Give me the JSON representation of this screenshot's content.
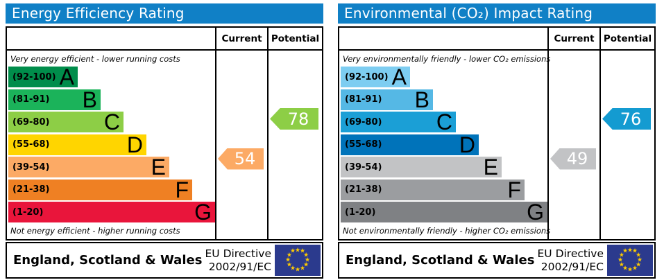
{
  "chart_data": [
    {
      "type": "bar",
      "title": "Energy Efficiency Rating",
      "title_bg": "#1080c6",
      "col_current": "Current",
      "col_potential": "Potential",
      "top_caption": "Very energy efficient - lower running costs",
      "bottom_caption": "Not energy efficient - higher running costs",
      "bands": [
        {
          "range_label": "(92-100)",
          "letter": "A",
          "min": 92,
          "max": 100,
          "color": "#008d4b"
        },
        {
          "range_label": "(81-91)",
          "letter": "B",
          "min": 81,
          "max": 91,
          "color": "#1bb35a"
        },
        {
          "range_label": "(69-80)",
          "letter": "C",
          "min": 69,
          "max": 80,
          "color": "#8dce46"
        },
        {
          "range_label": "(55-68)",
          "letter": "D",
          "min": 55,
          "max": 68,
          "color": "#ffd500"
        },
        {
          "range_label": "(39-54)",
          "letter": "E",
          "min": 39,
          "max": 54,
          "color": "#fcaa65"
        },
        {
          "range_label": "(21-38)",
          "letter": "F",
          "min": 21,
          "max": 38,
          "color": "#ef8023"
        },
        {
          "range_label": "(1-20)",
          "letter": "G",
          "min": 1,
          "max": 20,
          "color": "#e9153b"
        }
      ],
      "current": {
        "value": "54",
        "band": "E",
        "band_index": 4,
        "color": "#fcaa65"
      },
      "potential": {
        "value": "78",
        "band": "C",
        "band_index": 2,
        "color": "#8dce46"
      },
      "footer": {
        "region": "England, Scotland & Wales",
        "directive_line1": "EU Directive",
        "directive_line2": "2002/91/EC",
        "flag_bg": "#2b3a8d",
        "flag_star_color": "#ffcc00"
      }
    },
    {
      "type": "bar",
      "title": "Environmental (CO₂) Impact Rating",
      "title_bg": "#1080c6",
      "col_current": "Current",
      "col_potential": "Potential",
      "top_caption": "Very environmentally friendly - lower CO₂ emissions",
      "bottom_caption": "Not environmentally friendly - higher CO₂ emissions",
      "bands": [
        {
          "range_label": "(92-100)",
          "letter": "A",
          "min": 92,
          "max": 100,
          "color": "#7dcdf1"
        },
        {
          "range_label": "(81-91)",
          "letter": "B",
          "min": 81,
          "max": 91,
          "color": "#55b8e5"
        },
        {
          "range_label": "(69-80)",
          "letter": "C",
          "min": 69,
          "max": 80,
          "color": "#1b9fd6"
        },
        {
          "range_label": "(55-68)",
          "letter": "D",
          "min": 55,
          "max": 68,
          "color": "#0073ba"
        },
        {
          "range_label": "(39-54)",
          "letter": "E",
          "min": 39,
          "max": 54,
          "color": "#c2c3c5"
        },
        {
          "range_label": "(21-38)",
          "letter": "F",
          "min": 21,
          "max": 38,
          "color": "#9b9da0"
        },
        {
          "range_label": "(1-20)",
          "letter": "G",
          "min": 1,
          "max": 20,
          "color": "#7f8184"
        }
      ],
      "current": {
        "value": "49",
        "band": "E",
        "band_index": 4,
        "color": "#c2c3c5"
      },
      "potential": {
        "value": "76",
        "band": "C",
        "band_index": 2,
        "color": "#149bd1"
      },
      "footer": {
        "region": "England, Scotland & Wales",
        "directive_line1": "EU Directive",
        "directive_line2": "2002/91/EC",
        "flag_bg": "#2b3a8d",
        "flag_star_color": "#ffcc00"
      }
    }
  ]
}
